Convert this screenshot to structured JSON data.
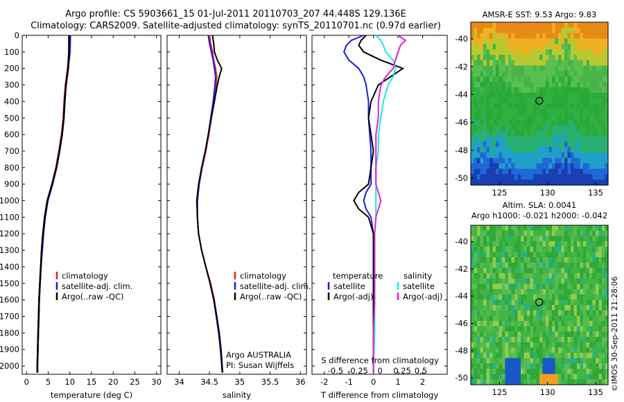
{
  "header": {
    "title_line1": "Argo profile: CS 5903661_15 01-Jul-2011 20110703_207 44.448S 129.136E",
    "title_line2": "Climatology: CARS2009. Satellite-adjusted climatology: synTS_20110701.nc (0.97d earlier)"
  },
  "maps": {
    "sst_title": "AMSR-E SST: 9.53 Argo: 9.83",
    "sla_title_line1": "Altim. SLA: 0.0041",
    "sla_title_line2": "Argo h1000: -0.021 h2000: -0.042",
    "lon_ticks": [
      "125",
      "130",
      "135"
    ],
    "lat_ticks": [
      "-40",
      "-42",
      "-44",
      "-46",
      "-48",
      "-50"
    ],
    "argo_position": {
      "lon": 129.136,
      "lat": -44.448
    },
    "credit": "©IMOS 30-Sep-2011 21:28:06"
  },
  "colors": {
    "climatology": "#e8201c",
    "satellite": "#1a1ae6",
    "argo": "#000000",
    "sat_salinity": "#18e8e8",
    "argo_salinity_adj": "#e020d0"
  },
  "chart_data": [
    {
      "type": "line",
      "xlabel": "temperature (deg C)",
      "ylabel": "",
      "xlim": [
        -1,
        31
      ],
      "ylim": [
        2050,
        0
      ],
      "xticks": [
        "0",
        "5",
        "10",
        "15",
        "20",
        "25",
        "30"
      ],
      "yticks": [
        "0",
        "100",
        "200",
        "300",
        "400",
        "500",
        "600",
        "700",
        "800",
        "900",
        "1000",
        "1100",
        "1200",
        "1300",
        "1400",
        "1500",
        "1600",
        "1700",
        "1800",
        "1900",
        "2000"
      ],
      "legend": [
        "climatology",
        "satellite-adj. clim.",
        "Argo(..raw -QC)"
      ],
      "depth": [
        0,
        100,
        200,
        300,
        400,
        500,
        600,
        700,
        800,
        900,
        1000,
        1100,
        1200,
        1300,
        1400,
        1500,
        1600,
        1700,
        1800,
        1900,
        2000,
        2040
      ],
      "series": [
        {
          "name": "climatology",
          "values": [
            9.9,
            9.8,
            9.5,
            9.0,
            8.7,
            8.5,
            8.1,
            7.5,
            6.8,
            5.9,
            4.8,
            4.2,
            3.8,
            3.5,
            3.3,
            3.1,
            2.9,
            2.8,
            2.7,
            2.6,
            2.5,
            2.5
          ]
        },
        {
          "name": "satellite-adj. clim.",
          "values": [
            10.1,
            10.0,
            9.6,
            9.1,
            8.8,
            8.6,
            8.2,
            7.6,
            6.9,
            6.0,
            4.9,
            4.3,
            3.9,
            3.6,
            3.3,
            3.1,
            2.9,
            2.8,
            2.7,
            2.6,
            2.5,
            2.5
          ]
        },
        {
          "name": "Argo(..raw -QC)",
          "values": [
            9.8,
            9.8,
            9.6,
            9.1,
            8.8,
            8.6,
            8.2,
            7.6,
            6.9,
            5.9,
            4.8,
            4.2,
            3.8,
            3.5,
            3.3,
            3.1,
            2.9,
            2.8,
            2.7,
            2.6,
            2.5,
            2.5
          ]
        }
      ]
    },
    {
      "type": "line",
      "xlabel": "salinity",
      "ylabel": "",
      "xlim": [
        33.8,
        36.1
      ],
      "ylim": [
        2050,
        0
      ],
      "xticks": [
        "34",
        "34.5",
        "35",
        "35.5",
        "36"
      ],
      "legend": [
        "climatology",
        "satellite-adj. clim.",
        "Argo(..raw -QC)"
      ],
      "annotation": [
        "Argo AUSTRALIA",
        "PI: Susan Wijffels"
      ],
      "depth": [
        0,
        50,
        100,
        150,
        200,
        250,
        300,
        400,
        500,
        600,
        700,
        800,
        900,
        1000,
        1100,
        1200,
        1300,
        1400,
        1500,
        1600,
        1700,
        1800,
        1900,
        2000,
        2040
      ],
      "series": [
        {
          "name": "climatology",
          "values": [
            34.5,
            34.52,
            34.55,
            34.57,
            34.6,
            34.62,
            34.61,
            34.57,
            34.53,
            34.49,
            34.44,
            34.38,
            34.33,
            34.3,
            34.3,
            34.32,
            34.37,
            34.44,
            34.52,
            34.58,
            34.62,
            34.66,
            34.69,
            34.71,
            34.72
          ]
        },
        {
          "name": "satellite-adj. clim.",
          "values": [
            34.48,
            34.5,
            34.53,
            34.56,
            34.58,
            34.6,
            34.59,
            34.56,
            34.52,
            34.48,
            34.43,
            34.37,
            34.33,
            34.3,
            34.3,
            34.32,
            34.37,
            34.44,
            34.51,
            34.57,
            34.61,
            34.65,
            34.68,
            34.7,
            34.71
          ]
        },
        {
          "name": "Argo(..raw -QC)",
          "values": [
            34.55,
            34.57,
            34.58,
            34.63,
            34.7,
            34.66,
            34.63,
            34.58,
            34.53,
            34.48,
            34.43,
            34.37,
            34.32,
            34.29,
            34.3,
            34.32,
            34.37,
            34.44,
            34.51,
            34.57,
            34.62,
            34.66,
            34.69,
            34.71,
            34.71
          ]
        }
      ]
    },
    {
      "type": "line",
      "xlabel": "T difference from climatology",
      "x2label": "S difference from climatology",
      "xlim": [
        -2.5,
        3
      ],
      "ylim": [
        2050,
        0
      ],
      "xticks": [
        "-2",
        "-1",
        "0",
        "1",
        "2"
      ],
      "x2ticks": [
        "-0.5",
        "-0.25",
        "0",
        "0.25",
        "0.5"
      ],
      "legend_temperature": {
        "heading": "temperature",
        "items": [
          "satellite",
          "Argo(-adj)"
        ]
      },
      "legend_salinity": {
        "heading": "salinity",
        "items": [
          "satellite",
          "Argo(-adj)"
        ]
      },
      "depth": [
        0,
        30,
        60,
        100,
        150,
        200,
        250,
        300,
        400,
        500,
        600,
        700,
        800,
        900,
        950,
        1000,
        1050,
        1100,
        1200,
        1400,
        1600,
        1800,
        2000,
        2040
      ],
      "series": [
        {
          "name": "temperature satellite",
          "values": [
            -0.4,
            -0.9,
            -1.1,
            -1.2,
            -1.0,
            -0.6,
            -0.4,
            -0.3,
            -0.2,
            -0.2,
            -0.15,
            -0.1,
            -0.1,
            -0.1,
            -0.3,
            -0.4,
            -0.3,
            -0.1,
            0.0,
            0.0,
            0.0,
            0.0,
            0.0,
            0.0
          ]
        },
        {
          "name": "temperature Argo(-adj)",
          "values": [
            -0.3,
            -0.5,
            -0.6,
            -0.4,
            0.3,
            1.2,
            0.7,
            0.2,
            -0.1,
            -0.2,
            -0.1,
            0.0,
            -0.1,
            -0.2,
            -0.6,
            -0.8,
            -0.6,
            -0.2,
            0.0,
            0.0,
            0.0,
            0.0,
            0.0,
            0.0
          ]
        },
        {
          "name": "salinity satellite",
          "values": [
            0.1,
            0.3,
            0.4,
            0.5,
            0.8,
            0.9,
            0.8,
            0.6,
            0.4,
            0.3,
            0.2,
            0.2,
            0.1,
            0.1,
            0.1,
            0.1,
            0.1,
            0.1,
            0.05,
            0.05,
            0.05,
            0.05,
            0.0,
            0.0
          ]
        },
        {
          "name": "salinity Argo(-adj)",
          "values": [
            1.0,
            1.3,
            1.1,
            1.0,
            0.9,
            0.8,
            0.5,
            0.3,
            0.2,
            0.2,
            0.1,
            0.1,
            0.1,
            0.1,
            0.2,
            0.3,
            0.2,
            0.1,
            0.05,
            0.05,
            0.05,
            0.0,
            0.0,
            0.0
          ]
        }
      ]
    }
  ]
}
